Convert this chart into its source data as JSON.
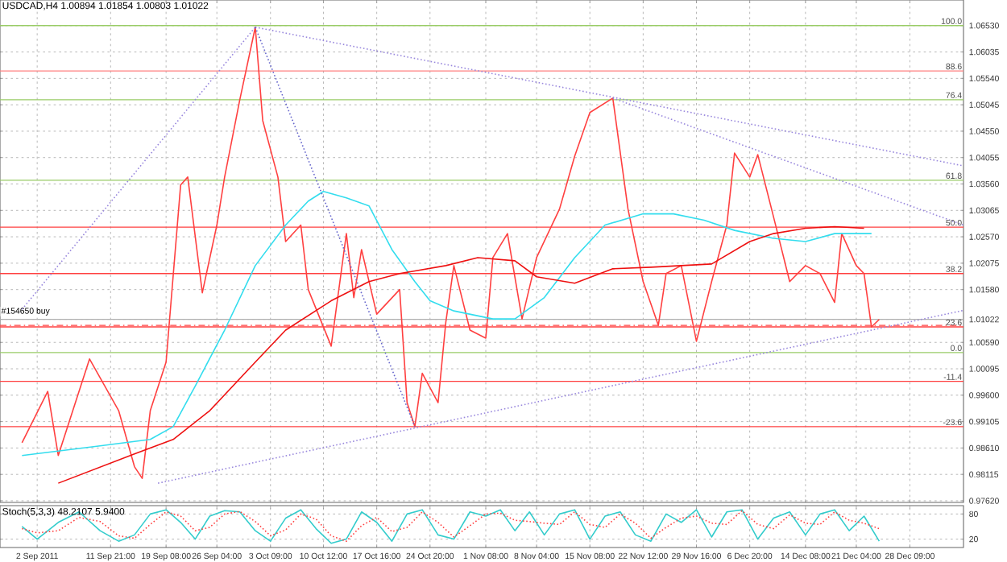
{
  "chart_data": [
    {
      "type": "line",
      "title": "USDCAD,H4 1.00894 1.01854 1.00803 1.01022",
      "xlim": [
        "2011-08-28T00:00",
        "2012-01-04T14:00"
      ],
      "ylim": [
        0.9759,
        1.0701
      ],
      "tick_labels": "y",
      "grid": true,
      "marker": "none",
      "xticks": [
        "2011-09-02T00:00",
        "2011-09-11T21:00",
        "2011-09-19T08:00",
        "2011-09-26T04:00",
        "2011-10-03T09:00",
        "2011-10-10T12:00",
        "2011-10-17T16:00",
        "2011-10-24T20:00",
        "2011-11-01T08:00",
        "2011-11-08T04:00",
        "2011-11-15T08:00",
        "2011-11-22T12:00",
        "2011-11-29T16:00",
        "2011-12-06T20:00",
        "2011-12-14T08:00",
        "2011-12-21T04:00",
        "2011-12-28T09:00"
      ],
      "yticks": [
        {
          "value": 1.0653,
          "label": "1.06530"
        },
        {
          "value": 1.06035,
          "label": "1.06035"
        },
        {
          "value": 1.0554,
          "label": "1.05540"
        },
        {
          "value": 1.05045,
          "label": "1.05045"
        },
        {
          "value": 1.0455,
          "label": "1.04550"
        },
        {
          "value": 1.04055,
          "label": "1.04055"
        },
        {
          "value": 1.0356,
          "label": "1.03560"
        },
        {
          "value": 1.03065,
          "label": "1.03065"
        },
        {
          "value": 1.0257,
          "label": "1.02570"
        },
        {
          "value": 1.02075,
          "label": "1.02075"
        },
        {
          "value": 1.0158,
          "label": "1.01580"
        },
        {
          "value": 1.01022,
          "label": "1.01022"
        },
        {
          "value": 1.0059,
          "label": "1.00590"
        },
        {
          "value": 1.00095,
          "label": "1.00095"
        },
        {
          "value": 0.996,
          "label": "0.99600"
        },
        {
          "value": 0.99105,
          "label": "0.99105"
        },
        {
          "value": 0.9861,
          "label": "0.98610"
        },
        {
          "value": 0.98115,
          "label": "0.98115"
        },
        {
          "value": 0.9762,
          "label": "0.97620"
        }
      ],
      "series": [
        {
          "color": "#ff4040",
          "line_style": "solid",
          "x": [
            "2011-08-30T23:00",
            "2011-09-03T10:00",
            "2011-09-04T20:00",
            "2011-09-09T01:00",
            "2011-09-12T23:00",
            "2011-09-15T02:00",
            "2011-09-16T03:00",
            "2011-09-17T05:00",
            "2011-09-19T08:00",
            "2011-09-21T07:00",
            "2011-09-22T06:00",
            "2011-09-24T05:00",
            "2011-09-26T04:00",
            "2011-09-27T05:00",
            "2011-09-29T06:00",
            "2011-10-01T08:00",
            "2011-10-02T08:00",
            "2011-10-04T09:00",
            "2011-10-05T10:00",
            "2011-10-07T11:00",
            "2011-10-08T11:00",
            "2011-10-11T13:00",
            "2011-10-13T14:00",
            "2011-10-14T14:00",
            "2011-10-15T15:00",
            "2011-10-17T16:00",
            "2011-10-20T18:00",
            "2011-10-21T18:00",
            "2011-10-22T19:00",
            "2011-10-23T19:00",
            "2011-10-25T22:00",
            "2011-10-26T23:00",
            "2011-10-28T01:00",
            "2011-10-30T05:00",
            "2011-11-01T08:00",
            "2011-11-02T07:00",
            "2011-11-04T06:00",
            "2011-11-06T05:00",
            "2011-11-08T04:00",
            "2011-11-11T06:00",
            "2011-11-13T07:00",
            "2011-11-15T08:00",
            "2011-11-18T10:00",
            "2011-11-20T11:00",
            "2011-11-22T12:00",
            "2011-11-24T13:00",
            "2011-11-25T14:00",
            "2011-11-27T15:00",
            "2011-11-29T16:00",
            "2011-12-01T17:00",
            "2011-12-03T18:00",
            "2011-12-04T19:00",
            "2011-12-06T20:00",
            "2011-12-07T22:00",
            "2011-12-10T01:00",
            "2011-12-12T05:00",
            "2011-12-14T08:00",
            "2011-12-16T07:00",
            "2011-12-18T06:00",
            "2011-12-19T05:00",
            "2011-12-21T04:00",
            "2011-12-22T05:00",
            "2011-12-23T05:00",
            "2011-12-24T06:00"
          ],
          "values": [
            0.9871,
            0.9967,
            0.9847,
            1.0028,
            0.9931,
            0.9826,
            0.9804,
            0.9931,
            1.0022,
            1.0354,
            1.0369,
            1.0152,
            1.0279,
            1.0369,
            1.0514,
            1.065,
            1.0475,
            1.0369,
            1.0248,
            1.0279,
            1.0158,
            1.0052,
            1.0263,
            1.0143,
            1.0233,
            1.0112,
            1.0158,
            0.9946,
            0.9901,
            1.0001,
            0.9946,
            1.0097,
            1.0203,
            1.0082,
            1.0067,
            1.0218,
            1.0263,
            1.0103,
            1.0218,
            1.0309,
            1.0408,
            1.049,
            1.0517,
            1.0309,
            1.0173,
            1.0091,
            1.0188,
            1.0203,
            1.0061,
            1.0173,
            1.0279,
            1.0414,
            1.0369,
            1.0411,
            1.0294,
            1.0173,
            1.0203,
            1.0188,
            1.0134,
            1.0263,
            1.0203,
            1.0188,
            1.0088,
            1.0102
          ]
        },
        {
          "color": "#33ddee",
          "line_style": "solid",
          "x": [
            "2011-08-30T23:00",
            "2011-09-10T11:00",
            "2011-09-17T05:00",
            "2011-09-20T07:00",
            "2011-09-23T06:00",
            "2011-09-27T05:00",
            "2011-10-01T08:00",
            "2011-10-05T10:00",
            "2011-10-08T11:00",
            "2011-10-10T12:00",
            "2011-10-13T14:00",
            "2011-10-16T15:00",
            "2011-10-19T17:00",
            "2011-10-22T19:00",
            "2011-10-24T20:00",
            "2011-10-28T01:00",
            "2011-11-02T07:00",
            "2011-11-05T06:00",
            "2011-11-09T05:00",
            "2011-11-13T07:00",
            "2011-11-17T09:00",
            "2011-11-22T12:00",
            "2011-11-26T14:00",
            "2011-11-30T17:00",
            "2011-12-04T19:00",
            "2011-12-10T01:00",
            "2011-12-14T08:00",
            "2011-12-18T06:00",
            "2011-12-23T05:00"
          ],
          "values": [
            0.9847,
            0.9865,
            0.9877,
            0.9901,
            0.9977,
            1.0082,
            1.0203,
            1.0279,
            1.0324,
            1.0342,
            1.033,
            1.0315,
            1.0233,
            1.0173,
            1.0137,
            1.0118,
            1.0103,
            1.0103,
            1.0143,
            1.0218,
            1.0279,
            1.03,
            1.03,
            1.0288,
            1.0269,
            1.0254,
            1.0248,
            1.0263,
            1.0263
          ]
        },
        {
          "color": "#ee1111",
          "line_style": "solid",
          "x": [
            "2011-09-04T20:00",
            "2011-09-15T02:00",
            "2011-09-20T07:00",
            "2011-09-25T05:00",
            "2011-10-01T08:00",
            "2011-10-05T10:00",
            "2011-10-11T13:00",
            "2011-10-16T15:00",
            "2011-10-20T18:00",
            "2011-10-26T23:00",
            "2011-10-31T06:00",
            "2011-11-05T06:00",
            "2011-11-08T04:00",
            "2011-11-13T07:00",
            "2011-11-18T10:00",
            "2011-11-23T13:00",
            "2011-12-01T17:00",
            "2011-12-06T20:00",
            "2011-12-10T01:00",
            "2011-12-14T08:00",
            "2011-12-18T06:00",
            "2011-12-22T05:00"
          ],
          "values": [
            0.9795,
            0.985,
            0.9877,
            0.9931,
            1.0022,
            1.0082,
            1.0137,
            1.0173,
            1.0188,
            1.0203,
            1.0218,
            1.0212,
            1.0182,
            1.017,
            1.0197,
            1.02,
            1.0206,
            1.0248,
            1.0263,
            1.0273,
            1.0276,
            1.0273
          ]
        },
        {
          "color": "#9988dd",
          "line_style": "dotted",
          "x": [
            "2011-08-30T23:00",
            "2011-10-01T08:00"
          ],
          "values": [
            1.0121,
            1.065
          ]
        },
        {
          "color": "#9988dd",
          "line_style": "dotted",
          "x": [
            "2011-10-01T08:00",
            "2012-01-04T14:00"
          ],
          "values": [
            1.065,
            1.039
          ]
        },
        {
          "color": "#9988dd",
          "line_style": "dotted",
          "x": [
            "2011-11-18T10:00",
            "2012-01-04T14:00"
          ],
          "values": [
            1.0517,
            1.0279
          ]
        },
        {
          "color": "#6666cc",
          "line_style": "dotted",
          "x": [
            "2011-10-01T08:00",
            "2011-10-22T19:00"
          ],
          "values": [
            1.065,
            0.9901
          ]
        },
        {
          "color": "#9988dd",
          "line_style": "dotted",
          "x": [
            "2011-09-18T06:00",
            "2012-01-04T14:00"
          ],
          "values": [
            0.9795,
            1.0119
          ]
        }
      ],
      "ref_lines": [
        {
          "axis": "y",
          "value": 1.0653,
          "color": "#99cc66",
          "line_style": "solid"
        },
        {
          "axis": "y",
          "value": 1.0568,
          "color": "#ff8080",
          "line_style": "solid"
        },
        {
          "axis": "y",
          "value": 1.0514,
          "color": "#99cc66",
          "line_style": "solid"
        },
        {
          "axis": "y",
          "value": 1.0363,
          "color": "#99cc66",
          "line_style": "solid"
        },
        {
          "axis": "y",
          "value": 1.0275,
          "color": "#ff4040",
          "line_style": "solid"
        },
        {
          "axis": "y",
          "value": 1.0188,
          "color": "#ff4040",
          "line_style": "solid"
        },
        {
          "axis": "y",
          "value": 1.0088,
          "color": "#ff4040",
          "line_style": "solid"
        },
        {
          "axis": "y",
          "value": 1.004,
          "color": "#99cc66",
          "line_style": "solid"
        },
        {
          "axis": "y",
          "value": 0.9986,
          "color": "#ff4040",
          "line_style": "solid"
        },
        {
          "axis": "y",
          "value": 0.9901,
          "color": "#ff4040",
          "line_style": "solid"
        },
        {
          "axis": "y",
          "value": 1.0091,
          "label": "#154650 buy",
          "color": "#ff4040",
          "line_style": "dashed"
        },
        {
          "axis": "y",
          "value": 1.01022,
          "color": "#b0b0b0",
          "line_style": "solid"
        }
      ],
      "annotations": [
        {
          "text": "100.0",
          "x": "2012-01-04T14:00",
          "y": 1.0653
        },
        {
          "text": "88.6",
          "x": "2012-01-04T14:00",
          "y": 1.0568
        },
        {
          "text": "76.4",
          "x": "2012-01-04T14:00",
          "y": 1.0514
        },
        {
          "text": "61.8",
          "x": "2012-01-04T14:00",
          "y": 1.0363
        },
        {
          "text": "50.0",
          "x": "2012-01-04T14:00",
          "y": 1.0275
        },
        {
          "text": "38.2",
          "x": "2012-01-04T14:00",
          "y": 1.0188
        },
        {
          "text": "23.6",
          "x": "2012-01-04T14:00",
          "y": 1.0088
        },
        {
          "text": "0.0",
          "x": "2012-01-04T14:00",
          "y": 1.004
        },
        {
          "text": "-11.4",
          "x": "2012-01-04T14:00",
          "y": 0.9986
        },
        {
          "text": "-23.6",
          "x": "2012-01-04T14:00",
          "y": 0.9901
        }
      ]
    },
    {
      "type": "line",
      "title": "Stoch(5,3,3) 48.2107 5.9400",
      "xlim": [
        "2011-08-28T00:00",
        "2012-01-04T14:00"
      ],
      "ylim": [
        0,
        100
      ],
      "yticks": [
        20,
        80
      ],
      "grid": true,
      "marker": "none",
      "xticks": [
        {
          "value": "2011-09-02T00:00",
          "label": "2 Sep 2011"
        },
        {
          "value": "2011-09-11T21:00",
          "label": "11 Sep 21:00"
        },
        {
          "value": "2011-09-19T08:00",
          "label": "19 Sep 08:00"
        },
        {
          "value": "2011-09-26T04:00",
          "label": "26 Sep 04:00"
        },
        {
          "value": "2011-10-03T09:00",
          "label": "3 Oct 09:00"
        },
        {
          "value": "2011-10-10T12:00",
          "label": "10 Oct 12:00"
        },
        {
          "value": "2011-10-17T16:00",
          "label": "17 Oct 16:00"
        },
        {
          "value": "2011-10-24T20:00",
          "label": "24 Oct 20:00"
        },
        {
          "value": "2011-11-01T08:00",
          "label": "1 Nov 08:00"
        },
        {
          "value": "2011-11-08T04:00",
          "label": "8 Nov 04:00"
        },
        {
          "value": "2011-11-15T08:00",
          "label": "15 Nov 08:00"
        },
        {
          "value": "2011-11-22T12:00",
          "label": "22 Nov 12:00"
        },
        {
          "value": "2011-11-29T16:00",
          "label": "29 Nov 16:00"
        },
        {
          "value": "2011-12-06T20:00",
          "label": "6 Dec 20:00"
        },
        {
          "value": "2011-12-14T08:00",
          "label": "14 Dec 08:00"
        },
        {
          "value": "2011-12-21T04:00",
          "label": "21 Dec 04:00"
        },
        {
          "value": "2011-12-28T09:00",
          "label": "28 Dec 09:00"
        }
      ],
      "x": [
        "2011-08-30T23:00",
        "2011-09-02T00:00",
        "2011-09-04T20:00",
        "2011-09-07T15:00",
        "2011-09-10T11:00",
        "2011-09-12T23:00",
        "2011-09-15T02:00",
        "2011-09-17T05:00",
        "2011-09-19T08:00",
        "2011-09-21T07:00",
        "2011-09-23T06:00",
        "2011-09-25T05:00",
        "2011-09-27T05:00",
        "2011-09-29T06:00",
        "2011-10-01T08:00",
        "2011-10-03T09:00",
        "2011-10-05T10:00",
        "2011-10-07T11:00",
        "2011-10-09T12:00",
        "2011-10-11T13:00",
        "2011-10-13T14:00",
        "2011-10-15T15:00",
        "2011-10-17T16:00",
        "2011-10-19T17:00",
        "2011-10-21T18:00",
        "2011-10-23T19:00",
        "2011-10-25T22:00",
        "2011-10-28T01:00",
        "2011-10-30T05:00",
        "2011-11-01T08:00",
        "2011-11-03T07:00",
        "2011-11-05T06:00",
        "2011-11-07T05:00",
        "2011-11-09T05:00",
        "2011-11-11T06:00",
        "2011-11-13T07:00",
        "2011-11-15T08:00",
        "2011-11-17T09:00",
        "2011-11-19T10:00",
        "2011-11-21T11:00",
        "2011-11-23T13:00",
        "2011-11-25T14:00",
        "2011-11-27T15:00",
        "2011-11-29T16:00",
        "2011-12-01T17:00",
        "2011-12-03T18:00",
        "2011-12-05T19:00",
        "2011-12-07T22:00",
        "2011-12-10T01:00",
        "2011-12-12T05:00",
        "2011-12-14T08:00",
        "2011-12-16T07:00",
        "2011-12-18T06:00",
        "2011-12-20T05:00",
        "2011-12-22T05:00",
        "2011-12-24T06:00"
      ],
      "series": [
        {
          "color": "#33cccc",
          "line_style": "solid",
          "values": [
            50,
            20,
            60,
            85,
            40,
            15,
            30,
            80,
            90,
            60,
            20,
            75,
            88,
            85,
            40,
            15,
            70,
            90,
            45,
            10,
            20,
            85,
            60,
            15,
            80,
            90,
            30,
            20,
            85,
            75,
            90,
            40,
            85,
            30,
            80,
            90,
            20,
            75,
            85,
            30,
            15,
            80,
            60,
            90,
            25,
            85,
            90,
            20,
            70,
            85,
            30,
            80,
            90,
            40,
            75,
            15
          ]
        },
        {
          "color": "#ff4040",
          "line_style": "dotted",
          "values": [
            45,
            35,
            40,
            72,
            62,
            28,
            22,
            55,
            85,
            75,
            40,
            48,
            80,
            86,
            62,
            28,
            42,
            80,
            68,
            28,
            15,
            52,
            72,
            38,
            48,
            85,
            60,
            25,
            52,
            80,
            82,
            65,
            62,
            58,
            55,
            85,
            55,
            48,
            80,
            58,
            22,
            48,
            70,
            75,
            58,
            55,
            88,
            55,
            45,
            78,
            58,
            55,
            85,
            65,
            58,
            45
          ]
        }
      ]
    }
  ]
}
